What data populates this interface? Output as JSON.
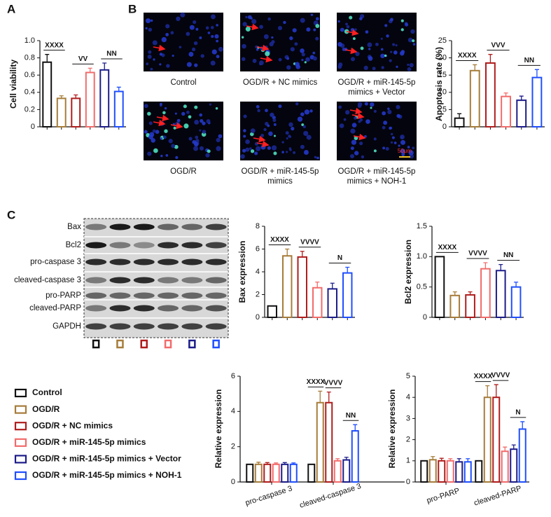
{
  "panels": [
    "A",
    "B",
    "C"
  ],
  "micrographs": [
    {
      "caption": [
        "Control"
      ]
    },
    {
      "caption": [
        "OGD/R + NC mimics"
      ]
    },
    {
      "caption": [
        "OGD/R + miR-145-5p",
        "mimics + Vector"
      ]
    },
    {
      "caption": [
        "OGD/R"
      ]
    },
    {
      "caption": [
        "OGD/R + miR-145-5p",
        "mimics"
      ]
    },
    {
      "caption": [
        "OGD/R + miR-145-5p",
        "mimics + NOH-1"
      ]
    }
  ],
  "scale_bar": "50μm",
  "blot": {
    "labels": [
      "Bax",
      "Bcl2",
      "pro-caspase 3",
      "cleaved-caspase 3",
      "pro-PARP",
      "cleaved-PARP",
      "GAPDH"
    ]
  },
  "chart_data": [
    {
      "type": "bar",
      "ylabel": "Cell viability",
      "categories": [
        null,
        null,
        null,
        null,
        null,
        null
      ],
      "values": [
        0.75,
        0.33,
        0.33,
        0.63,
        0.66,
        0.41
      ],
      "errors": [
        0.09,
        0.03,
        0.04,
        0.05,
        0.08,
        0.05
      ],
      "colors": [
        "#111111",
        "#a67c3a",
        "#b01c1c",
        "#f26b6b",
        "#1c1c8a",
        "#1f4fff"
      ],
      "ylim": [
        0,
        1
      ],
      "yticks": [
        0,
        0.2,
        0.4,
        0.6,
        0.8,
        {
          "value": 1,
          "label": "1.0"
        }
      ],
      "annotations": [
        "XXXX",
        "VV",
        "NN"
      ]
    },
    {
      "type": "bar",
      "ylabel": "Apoptosis rate (%)",
      "categories": [
        null,
        null,
        null,
        null,
        null,
        null
      ],
      "values": [
        2.5,
        16.3,
        18.5,
        8.8,
        7.7,
        14.3
      ],
      "errors": [
        1.3,
        1.7,
        2.5,
        1.0,
        1.2,
        2.3
      ],
      "colors": [
        "#111111",
        "#a67c3a",
        "#b01c1c",
        "#f26b6b",
        "#1c1c8a",
        "#1f4fff"
      ],
      "ylim": [
        0,
        25
      ],
      "yticks": [
        0,
        5,
        10,
        15,
        20,
        25
      ],
      "annotations": [
        "XXXX",
        "VVV",
        "NN"
      ]
    },
    {
      "type": "bar",
      "ylabel": "Bax expression",
      "categories": [
        null,
        null,
        null,
        null,
        null,
        null
      ],
      "values": [
        1,
        5.4,
        5.3,
        2.6,
        2.5,
        3.9
      ],
      "errors": [
        0,
        0.6,
        0.5,
        0.5,
        0.5,
        0.5
      ],
      "colors": [
        "#111111",
        "#a67c3a",
        "#b01c1c",
        "#f26b6b",
        "#1c1c8a",
        "#1f4fff"
      ],
      "ylim": [
        0,
        8
      ],
      "yticks": [
        0,
        2,
        4,
        6,
        8
      ],
      "annotations": [
        "XXXX",
        "VVVV",
        "N"
      ]
    },
    {
      "type": "bar",
      "ylabel": "Bcl2 expression",
      "categories": [
        null,
        null,
        null,
        null,
        null,
        null
      ],
      "values": [
        1,
        0.36,
        0.37,
        0.8,
        0.77,
        0.5
      ],
      "errors": [
        0,
        0.06,
        0.05,
        0.1,
        0.1,
        0.08
      ],
      "colors": [
        "#111111",
        "#a67c3a",
        "#b01c1c",
        "#f26b6b",
        "#1c1c8a",
        "#1f4fff"
      ],
      "ylim": [
        0,
        1.5
      ],
      "yticks": [
        0,
        0.5,
        {
          "value": 1,
          "label": "1.0"
        },
        1.5
      ],
      "annotations": [
        "XXXX",
        "VVVV",
        "NN"
      ]
    },
    {
      "type": "grouped_bar",
      "ylabel": "Relative expression",
      "categories": [
        "pro-caspase 3",
        "cleaved-caspase 3"
      ],
      "series": [
        {
          "name": "Control",
          "color": "#111111",
          "values": [
            1,
            1
          ],
          "errors": [
            0,
            0
          ]
        },
        {
          "name": "OGD/R",
          "color": "#a67c3a",
          "values": [
            1,
            4.5
          ],
          "errors": [
            0.12,
            0.65
          ]
        },
        {
          "name": "OGD/R + NC mimics",
          "color": "#b01c1c",
          "values": [
            1,
            4.5
          ],
          "errors": [
            0.1,
            0.6
          ]
        },
        {
          "name": "OGD/R + miR-145-5p mimics",
          "color": "#f26b6b",
          "values": [
            1,
            1.2
          ],
          "errors": [
            0.08,
            0.12
          ]
        },
        {
          "name": "OGD/R + miR-145-5p mimics + Vector",
          "color": "#1c1c8a",
          "values": [
            1,
            1.25
          ],
          "errors": [
            0.1,
            0.15
          ]
        },
        {
          "name": "OGD/R + miR-145-5p mimics + NOH-1",
          "color": "#1f4fff",
          "values": [
            1,
            2.9
          ],
          "errors": [
            0.08,
            0.35
          ]
        }
      ],
      "ylim": [
        0,
        6
      ],
      "yticks": [
        0,
        2,
        4,
        6
      ],
      "annotations": [
        "XXXX",
        "VVVV",
        "NN"
      ]
    },
    {
      "type": "grouped_bar",
      "ylabel": "Relative expression",
      "categories": [
        "pro-PARP",
        "cleaved-PARP"
      ],
      "series": [
        {
          "color": "#111111",
          "values": [
            1,
            1
          ],
          "errors": [
            0,
            0
          ]
        },
        {
          "color": "#a67c3a",
          "values": [
            1.05,
            4
          ],
          "errors": [
            0.15,
            0.55
          ]
        },
        {
          "color": "#b01c1c",
          "values": [
            1,
            4
          ],
          "errors": [
            0.12,
            0.6
          ]
        },
        {
          "color": "#f26b6b",
          "values": [
            1,
            1.45
          ],
          "errors": [
            0.1,
            0.2
          ]
        },
        {
          "color": "#1c1c8a",
          "values": [
            0.95,
            1.55
          ],
          "errors": [
            0.15,
            0.2
          ]
        },
        {
          "color": "#1f4fff",
          "values": [
            0.95,
            2.5
          ],
          "errors": [
            0.15,
            0.35
          ]
        }
      ],
      "ylim": [
        0,
        5
      ],
      "yticks": [
        0,
        1,
        2,
        3,
        4,
        5
      ],
      "annotations": [
        "XXXX",
        "VVVV",
        "N"
      ]
    }
  ]
}
